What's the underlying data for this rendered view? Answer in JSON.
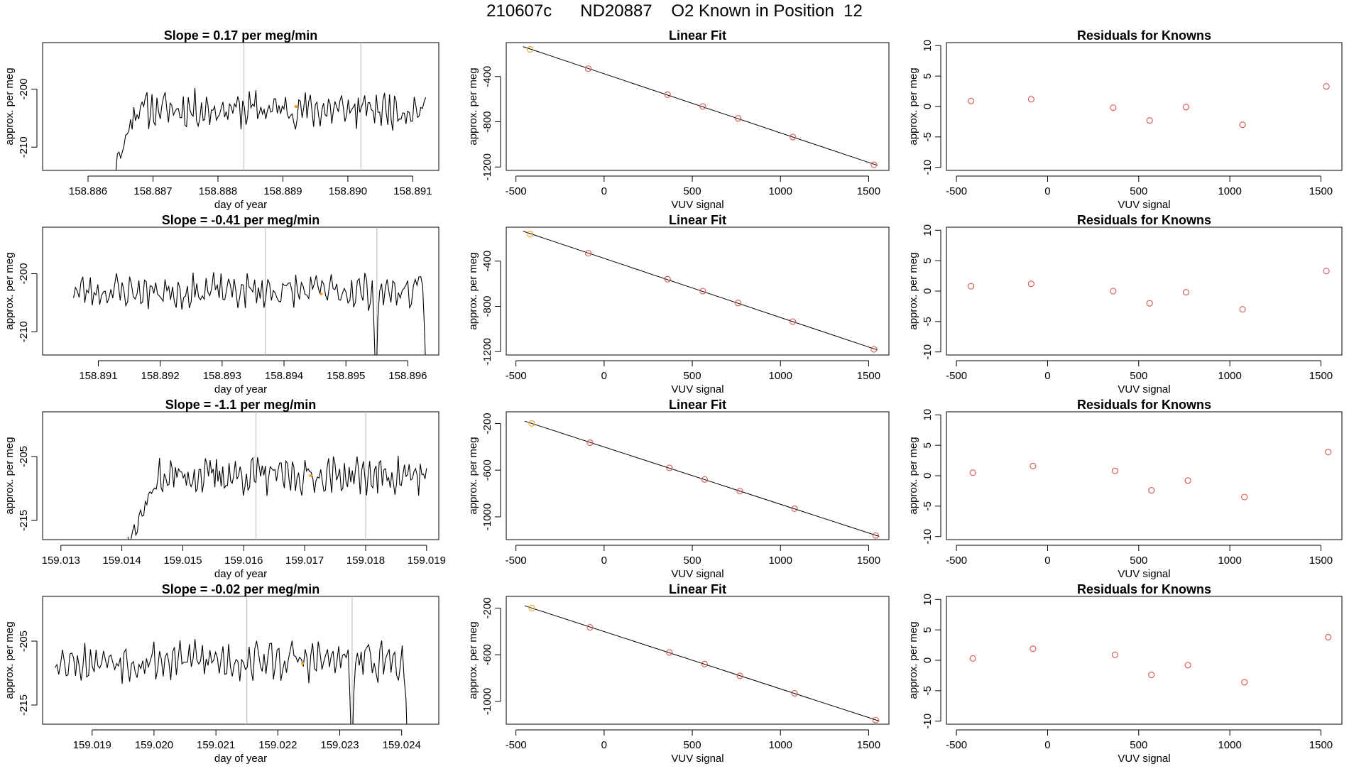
{
  "header": {
    "title": "210607c      ND20887    O2 Known in Position  12"
  },
  "chart_data": [
    {
      "type": "line",
      "panel": "timeseries",
      "title": "Slope =  0.17  per meg/min",
      "xlabel": "day of year",
      "ylabel": "approx. per meg",
      "xlim": [
        158.8853,
        158.8914
      ],
      "ylim": [
        -214,
        -192
      ],
      "xticks": [
        158.886,
        158.887,
        158.888,
        158.889,
        158.89,
        158.891
      ],
      "xtick_labels": [
        "158.886",
        "158.887",
        "158.888",
        "158.889",
        "158.890",
        "158.891"
      ],
      "yticks": [
        -210,
        -200
      ],
      "ytick_labels": [
        "-210",
        "-200"
      ],
      "vlines": [
        158.8884,
        158.8902
      ],
      "x_range": [
        158.8864,
        158.8912
      ],
      "ramp": {
        "start": -214,
        "end": -205,
        "fraction": 0.06
      },
      "baseline": -203.5,
      "noise": 2.4,
      "highlight": {
        "x": 158.8892,
        "y": -203
      },
      "seed": 11
    },
    {
      "type": "scatter",
      "panel": "fit",
      "title": "Linear Fit",
      "xlabel": "VUV signal",
      "ylabel": "approx. per meg",
      "xlim": [
        -555,
        1615
      ],
      "ylim": [
        -1230,
        -100
      ],
      "xticks": [
        -500,
        0,
        500,
        1000,
        1500
      ],
      "xtick_labels": [
        "-500",
        "0",
        "500",
        "1000",
        "1500"
      ],
      "yticks": [
        -1200,
        -800,
        -400
      ],
      "ytick_labels": [
        "-1200",
        "-800",
        "-400"
      ],
      "x": [
        -420,
        -90,
        360,
        560,
        760,
        1070,
        1530
      ],
      "y": [
        -160,
        -330,
        -560,
        -665,
        -770,
        -935,
        -1180
      ],
      "highlight_index": 0
    },
    {
      "type": "scatter",
      "panel": "residuals",
      "title": "Residuals for Knowns",
      "xlabel": "VUV signal",
      "ylabel": "approx. per meg",
      "xlim": [
        -555,
        1615
      ],
      "ylim": [
        -10.5,
        10.5
      ],
      "xticks": [
        -500,
        0,
        500,
        1000,
        1500
      ],
      "xtick_labels": [
        "-500",
        "0",
        "500",
        "1000",
        "1500"
      ],
      "yticks": [
        -10,
        -5,
        0,
        5,
        10
      ],
      "ytick_labels": [
        "-10",
        "-5",
        "0",
        "5",
        "10"
      ],
      "x": [
        -420,
        -90,
        360,
        560,
        760,
        1070,
        1530
      ],
      "y": [
        0.9,
        1.2,
        -0.2,
        -2.3,
        -0.1,
        -3.0,
        3.3
      ]
    },
    {
      "type": "line",
      "panel": "timeseries",
      "title": "Slope =  -0.41  per meg/min",
      "xlabel": "day of year",
      "ylabel": "approx. per meg",
      "xlim": [
        158.8901,
        158.8965
      ],
      "ylim": [
        -214,
        -192
      ],
      "xticks": [
        158.891,
        158.892,
        158.893,
        158.894,
        158.895,
        158.896
      ],
      "xtick_labels": [
        "158.891",
        "158.892",
        "158.893",
        "158.894",
        "158.895",
        "158.896"
      ],
      "yticks": [
        -210,
        -200
      ],
      "ytick_labels": [
        "-210",
        "-200"
      ],
      "vlines": [
        158.8937,
        158.8955
      ],
      "x_range": [
        158.8906,
        158.8963
      ],
      "baseline": -203,
      "noise": 2.3,
      "dips": [
        {
          "x": 158.8955,
          "y": -214
        },
        {
          "x": 158.8963,
          "y": -214
        }
      ],
      "highlight": {
        "x": 158.8946,
        "y": -203.5
      },
      "seed": 23
    },
    {
      "type": "scatter",
      "panel": "fit",
      "title": "Linear Fit",
      "xlabel": "VUV signal",
      "ylabel": "approx. per meg",
      "xlim": [
        -555,
        1615
      ],
      "ylim": [
        -1230,
        -100
      ],
      "xticks": [
        -500,
        0,
        500,
        1000,
        1500
      ],
      "xtick_labels": [
        "-500",
        "0",
        "500",
        "1000",
        "1500"
      ],
      "yticks": [
        -1200,
        -800,
        -400
      ],
      "ytick_labels": [
        "-1200",
        "-800",
        "-400"
      ],
      "x": [
        -420,
        -90,
        360,
        560,
        760,
        1070,
        1530
      ],
      "y": [
        -160,
        -330,
        -560,
        -665,
        -770,
        -935,
        -1180
      ],
      "highlight_index": 0
    },
    {
      "type": "scatter",
      "panel": "residuals",
      "title": "Residuals for Knowns",
      "xlabel": "VUV signal",
      "ylabel": "approx. per meg",
      "xlim": [
        -555,
        1615
      ],
      "ylim": [
        -10.5,
        10.5
      ],
      "xticks": [
        -500,
        0,
        500,
        1000,
        1500
      ],
      "xtick_labels": [
        "-500",
        "0",
        "500",
        "1000",
        "1500"
      ],
      "yticks": [
        -10,
        -5,
        0,
        5,
        10
      ],
      "ytick_labels": [
        "-10",
        "-5",
        "0",
        "5",
        "10"
      ],
      "x": [
        -420,
        -90,
        360,
        560,
        760,
        1070,
        1530
      ],
      "y": [
        0.8,
        1.2,
        0.0,
        -2.0,
        -0.2,
        -3.0,
        3.3
      ]
    },
    {
      "type": "line",
      "panel": "timeseries",
      "title": "Slope =  -1.1  per meg/min",
      "xlabel": "day of year",
      "ylabel": "approx. per meg",
      "xlim": [
        159.0127,
        159.0192
      ],
      "ylim": [
        -218,
        -198
      ],
      "xticks": [
        159.013,
        159.014,
        159.015,
        159.016,
        159.017,
        159.018,
        159.019
      ],
      "xtick_labels": [
        "159.013",
        "159.014",
        "159.015",
        "159.016",
        "159.017",
        "159.018",
        "159.019"
      ],
      "yticks": [
        -215,
        -205
      ],
      "ytick_labels": [
        "-215",
        "-205"
      ],
      "vlines": [
        159.0162,
        159.018
      ],
      "x_range": [
        159.0141,
        159.019
      ],
      "ramp": {
        "start": -218,
        "end": -210,
        "fraction": 0.1
      },
      "baseline": -208,
      "noise": 2.2,
      "highlight": {
        "x": 159.0171,
        "y": -208
      },
      "seed": 37
    },
    {
      "type": "scatter",
      "panel": "fit",
      "title": "Linear Fit",
      "xlabel": "VUV signal",
      "ylabel": "approx. per meg",
      "xlim": [
        -555,
        1615
      ],
      "ylim": [
        -1195,
        -100
      ],
      "xticks": [
        -500,
        0,
        500,
        1000,
        1500
      ],
      "xtick_labels": [
        "-500",
        "0",
        "500",
        "1000",
        "1500"
      ],
      "yticks": [
        -1000,
        -600,
        -200
      ],
      "ytick_labels": [
        "-1000",
        "-600",
        "-200"
      ],
      "x": [
        -410,
        -80,
        370,
        570,
        770,
        1080,
        1540
      ],
      "y": [
        -200,
        -365,
        -580,
        -680,
        -780,
        -930,
        -1160
      ],
      "highlight_index": 0
    },
    {
      "type": "scatter",
      "panel": "residuals",
      "title": "Residuals for Knowns",
      "xlabel": "VUV signal",
      "ylabel": "approx. per meg",
      "xlim": [
        -555,
        1615
      ],
      "ylim": [
        -10.5,
        10.5
      ],
      "xticks": [
        -500,
        0,
        500,
        1000,
        1500
      ],
      "xtick_labels": [
        "-500",
        "0",
        "500",
        "1000",
        "1500"
      ],
      "yticks": [
        -10,
        -5,
        0,
        5,
        10
      ],
      "ytick_labels": [
        "-10",
        "-5",
        "0",
        "5",
        "10"
      ],
      "x": [
        -410,
        -80,
        370,
        570,
        770,
        1080,
        1540
      ],
      "y": [
        0.5,
        1.6,
        0.8,
        -2.4,
        -0.8,
        -3.5,
        3.9
      ]
    },
    {
      "type": "line",
      "panel": "timeseries",
      "title": "Slope =  -0.02  per meg/min",
      "xlabel": "day of year",
      "ylabel": "approx. per meg",
      "xlim": [
        159.0182,
        159.0246
      ],
      "ylim": [
        -218,
        -198
      ],
      "xticks": [
        159.019,
        159.02,
        159.021,
        159.022,
        159.023,
        159.024
      ],
      "xtick_labels": [
        "159.019",
        "159.020",
        "159.021",
        "159.022",
        "159.023",
        "159.024"
      ],
      "yticks": [
        -215,
        -205
      ],
      "ytick_labels": [
        "-215",
        "-205"
      ],
      "vlines": [
        159.0215,
        159.0232
      ],
      "x_range": [
        159.0184,
        159.0241
      ],
      "baseline": -208,
      "noise": 2.4,
      "dips": [
        {
          "x": 159.0232,
          "y": -218
        },
        {
          "x": 159.0241,
          "y": -218
        }
      ],
      "highlight": {
        "x": 159.0224,
        "y": -208.5
      },
      "seed": 53
    },
    {
      "type": "scatter",
      "panel": "fit",
      "title": "Linear Fit",
      "xlabel": "VUV signal",
      "ylabel": "approx. per meg",
      "xlim": [
        -555,
        1615
      ],
      "ylim": [
        -1195,
        -100
      ],
      "xticks": [
        -500,
        0,
        500,
        1000,
        1500
      ],
      "xtick_labels": [
        "-500",
        "0",
        "500",
        "1000",
        "1500"
      ],
      "yticks": [
        -1000,
        -600,
        -200
      ],
      "ytick_labels": [
        "-1000",
        "-600",
        "-200"
      ],
      "x": [
        -410,
        -80,
        370,
        570,
        770,
        1080,
        1540
      ],
      "y": [
        -200,
        -365,
        -580,
        -680,
        -780,
        -930,
        -1160
      ],
      "highlight_index": 0
    },
    {
      "type": "scatter",
      "panel": "residuals",
      "title": "Residuals for Knowns",
      "xlabel": "VUV signal",
      "ylabel": "approx. per meg",
      "xlim": [
        -555,
        1615
      ],
      "ylim": [
        -10.5,
        10.5
      ],
      "xticks": [
        -500,
        0,
        500,
        1000,
        1500
      ],
      "xtick_labels": [
        "-500",
        "0",
        "500",
        "1000",
        "1500"
      ],
      "yticks": [
        -10,
        -5,
        0,
        5,
        10
      ],
      "ytick_labels": [
        "-10",
        "-5",
        "0",
        "5",
        "10"
      ],
      "x": [
        -410,
        -80,
        370,
        570,
        770,
        1080,
        1540
      ],
      "y": [
        0.3,
        1.9,
        0.9,
        -2.4,
        -0.8,
        -3.6,
        3.8
      ]
    }
  ],
  "colors": {
    "line": "#000000",
    "point": "#d9534f",
    "highlight": "#f0a020",
    "vline": "#b5b5b5"
  }
}
